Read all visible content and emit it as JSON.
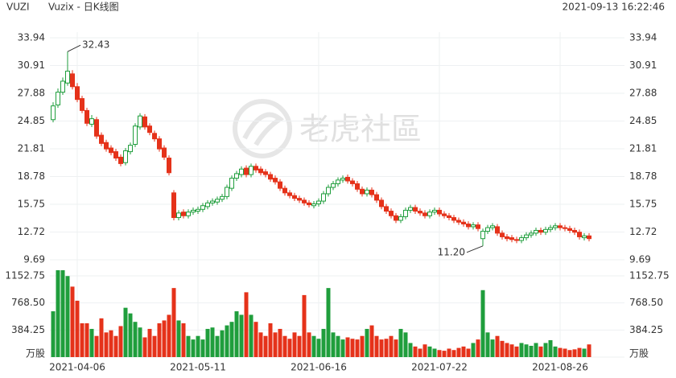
{
  "header": {
    "symbol": "VUZI",
    "title": "Vuzix - 日K线图",
    "timestamp": "2021-09-13 16:22:46"
  },
  "watermark": "老虎社區",
  "chart_data": {
    "type": "candlestick",
    "up_color": "#1f9e3c",
    "down_color": "#e5321a",
    "grid": true,
    "annotations": [
      "32.43",
      "11.20"
    ],
    "categories": [
      null,
      null,
      null,
      null,
      null,
      "2021-04-06",
      null,
      null,
      null,
      null,
      null,
      null,
      null,
      null,
      null,
      null,
      null,
      null,
      null,
      null,
      null,
      null,
      null,
      null,
      null,
      null,
      null,
      null,
      null,
      null,
      "2021-05-11",
      null,
      null,
      null,
      null,
      null,
      null,
      null,
      null,
      null,
      null,
      null,
      null,
      null,
      null,
      null,
      null,
      null,
      null,
      null,
      null,
      null,
      null,
      null,
      null,
      "2021-06-16",
      null,
      null,
      null,
      null,
      null,
      null,
      null,
      null,
      null,
      null,
      null,
      null,
      null,
      null,
      null,
      null,
      null,
      null,
      null,
      null,
      null,
      null,
      null,
      null,
      "2021-07-22",
      null,
      null,
      null,
      null,
      null,
      null,
      null,
      null,
      null,
      null,
      null,
      null,
      null,
      null,
      null,
      null,
      null,
      null,
      null,
      null,
      null,
      null,
      null,
      null,
      "2021-08-26",
      null,
      null,
      null,
      null,
      null,
      null
    ],
    "open": [
      25.0,
      26.6,
      28.0,
      29.0,
      30.0,
      28.6,
      27.3,
      26.0,
      24.5,
      25.0,
      23.3,
      22.5,
      21.9,
      21.5,
      20.9,
      20.3,
      21.5,
      22.3,
      24.2,
      25.3,
      24.3,
      23.5,
      22.9,
      21.9,
      20.8,
      17.0,
      14.3,
      14.9,
      14.5,
      14.9,
      15.0,
      15.2,
      15.5,
      15.9,
      16.0,
      16.3,
      16.6,
      17.5,
      18.6,
      19.0,
      19.7,
      19.0,
      19.9,
      19.6,
      19.3,
      19.0,
      18.6,
      18.2,
      17.5,
      17.0,
      16.7,
      16.4,
      16.2,
      15.9,
      15.6,
      15.8,
      16.1,
      16.9,
      17.6,
      18.0,
      18.4,
      18.7,
      18.3,
      18.0,
      17.4,
      16.9,
      17.3,
      16.8,
      16.2,
      15.5,
      15.0,
      14.5,
      14.0,
      14.4,
      15.1,
      15.4,
      15.0,
      14.8,
      14.5,
      14.9,
      15.1,
      14.7,
      14.5,
      14.3,
      14.0,
      13.8,
      13.6,
      13.3,
      13.5,
      12.0,
      12.8,
      13.2,
      13.3,
      12.6,
      12.2,
      12.1,
      11.9,
      11.8,
      12.1,
      12.4,
      12.6,
      12.9,
      12.7,
      13.0,
      13.2,
      13.4,
      13.2,
      13.1,
      12.9,
      12.7,
      12.1,
      12.3
    ],
    "high": [
      26.9,
      28.4,
      29.6,
      32.43,
      30.4,
      29.0,
      27.6,
      26.3,
      25.5,
      25.3,
      23.6,
      22.8,
      22.2,
      21.8,
      21.2,
      21.9,
      22.5,
      24.6,
      25.7,
      25.6,
      24.6,
      23.8,
      23.2,
      22.2,
      21.1,
      17.3,
      15.1,
      15.2,
      15.2,
      15.4,
      15.5,
      15.9,
      16.2,
      16.4,
      16.6,
      16.9,
      17.9,
      18.9,
      19.4,
      19.9,
      20.0,
      20.2,
      20.2,
      19.9,
      19.6,
      19.3,
      18.9,
      18.5,
      17.8,
      17.3,
      17.0,
      16.7,
      16.5,
      16.2,
      16.1,
      16.4,
      17.2,
      17.9,
      18.3,
      18.7,
      18.9,
      19.0,
      18.6,
      18.3,
      17.7,
      17.6,
      17.6,
      17.1,
      16.5,
      15.8,
      15.3,
      14.8,
      14.7,
      15.4,
      15.7,
      15.7,
      15.3,
      15.1,
      15.2,
      15.4,
      15.4,
      15.0,
      14.8,
      14.6,
      14.3,
      14.1,
      13.9,
      13.8,
      13.8,
      13.1,
      13.5,
      13.7,
      13.6,
      12.9,
      12.5,
      12.4,
      12.2,
      12.4,
      12.7,
      12.9,
      13.2,
      13.2,
      13.3,
      13.5,
      13.7,
      13.7,
      13.5,
      13.4,
      13.2,
      13.0,
      12.6,
      12.6
    ],
    "low": [
      24.7,
      26.3,
      27.7,
      28.7,
      28.3,
      26.9,
      25.7,
      24.3,
      24.2,
      22.9,
      22.1,
      21.5,
      21.1,
      20.5,
      19.9,
      20.0,
      21.2,
      22.0,
      23.9,
      23.9,
      23.3,
      22.6,
      21.5,
      20.6,
      18.9,
      14.0,
      14.0,
      14.2,
      14.2,
      14.6,
      14.7,
      14.9,
      15.2,
      15.6,
      15.7,
      16.0,
      16.3,
      17.2,
      18.3,
      18.7,
      18.7,
      18.7,
      19.2,
      18.9,
      18.7,
      18.2,
      17.9,
      17.2,
      16.7,
      16.4,
      16.1,
      15.9,
      15.6,
      15.4,
      15.3,
      15.5,
      15.8,
      16.6,
      17.3,
      17.7,
      18.1,
      18.0,
      17.7,
      17.1,
      16.6,
      16.6,
      16.5,
      15.9,
      15.2,
      14.7,
      14.2,
      13.7,
      13.7,
      14.1,
      14.8,
      14.7,
      14.5,
      14.2,
      14.2,
      14.6,
      14.4,
      14.2,
      14.0,
      13.7,
      13.5,
      13.3,
      13.0,
      13.0,
      12.8,
      11.2,
      12.5,
      12.9,
      12.3,
      11.9,
      11.7,
      11.6,
      11.5,
      11.5,
      11.8,
      12.1,
      12.3,
      12.4,
      12.4,
      12.7,
      12.9,
      12.9,
      12.8,
      12.6,
      12.4,
      11.9,
      11.8,
      11.7
    ],
    "close": [
      26.5,
      28.0,
      29.2,
      30.3,
      28.6,
      27.2,
      26.0,
      24.6,
      25.1,
      23.2,
      22.4,
      21.8,
      21.4,
      20.8,
      20.2,
      21.6,
      22.2,
      24.3,
      25.4,
      24.2,
      23.6,
      22.9,
      21.8,
      20.9,
      19.2,
      14.3,
      14.8,
      14.5,
      14.9,
      15.1,
      15.2,
      15.6,
      15.9,
      16.1,
      16.3,
      16.6,
      17.6,
      18.6,
      19.1,
      19.6,
      19.0,
      19.9,
      19.5,
      19.2,
      19.0,
      18.5,
      18.2,
      17.5,
      17.0,
      16.7,
      16.4,
      16.2,
      15.9,
      15.7,
      15.8,
      16.1,
      16.9,
      17.6,
      18.0,
      18.4,
      18.6,
      18.3,
      18.0,
      17.4,
      16.9,
      17.3,
      16.8,
      16.2,
      15.5,
      15.0,
      14.5,
      14.0,
      14.4,
      15.1,
      15.4,
      15.0,
      14.8,
      14.5,
      14.9,
      15.1,
      14.7,
      14.5,
      14.3,
      14.0,
      13.8,
      13.6,
      13.3,
      13.5,
      13.1,
      12.8,
      13.2,
      13.4,
      12.6,
      12.2,
      12.0,
      11.9,
      11.8,
      12.1,
      12.4,
      12.6,
      12.9,
      12.7,
      13.0,
      13.2,
      13.4,
      13.2,
      13.1,
      12.9,
      12.7,
      12.2,
      12.3,
      12.0
    ],
    "ylim": [
      9.69,
      33.94
    ],
    "yticks": [
      9.69,
      12.72,
      15.75,
      18.78,
      21.81,
      24.85,
      27.88,
      30.91,
      33.94
    ],
    "volume": {
      "values": [
        650,
        1250,
        1250,
        1150,
        1000,
        800,
        480,
        480,
        400,
        300,
        550,
        350,
        380,
        300,
        440,
        700,
        620,
        500,
        420,
        280,
        400,
        300,
        480,
        520,
        600,
        980,
        520,
        480,
        300,
        250,
        300,
        250,
        400,
        420,
        300,
        380,
        450,
        500,
        650,
        600,
        920,
        600,
        500,
        350,
        300,
        480,
        350,
        400,
        300,
        260,
        350,
        300,
        880,
        350,
        300,
        260,
        400,
        980,
        350,
        300,
        250,
        280,
        260,
        250,
        300,
        400,
        450,
        300,
        250,
        260,
        300,
        250,
        400,
        350,
        200,
        150,
        120,
        180,
        150,
        120,
        100,
        90,
        120,
        100,
        130,
        150,
        120,
        200,
        250,
        950,
        350,
        250,
        300,
        230,
        200,
        180,
        150,
        200,
        180,
        160,
        200,
        150,
        200,
        240,
        150,
        130,
        120,
        100,
        110,
        130,
        120,
        180
      ],
      "ylim": [
        0,
        1152.75
      ],
      "yticks": [
        {
          "value": 0,
          "label": "万股"
        },
        384.25,
        {
          "value": 768.5,
          "label": "768.50"
        },
        1152.75
      ]
    }
  }
}
